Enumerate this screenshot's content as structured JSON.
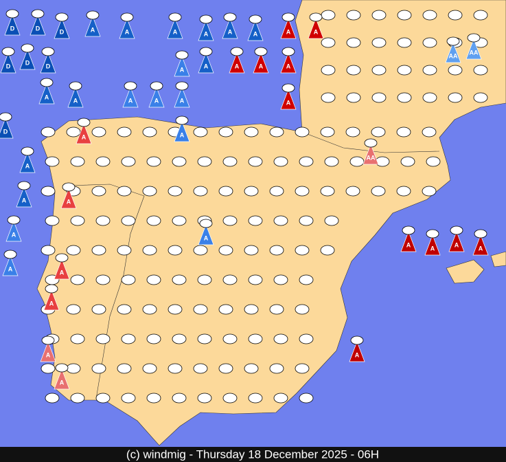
{
  "footer": "(c) windmig - Thursday 18 December 2025 - 06H",
  "markers": [
    "D",
    "D",
    "D",
    "D",
    "D",
    "D",
    "D",
    "A",
    "A",
    "A",
    "A",
    "A",
    "A",
    "A",
    "A",
    "A",
    "A",
    "A",
    "A",
    "A",
    "A",
    "A",
    "A",
    "A",
    "A",
    "A",
    "A",
    "A",
    "A",
    "A",
    "A",
    "A",
    "A",
    "A",
    "A",
    "A",
    "A",
    "A",
    "AA",
    "AA",
    "AA",
    "A",
    "A",
    "A",
    "A",
    "A"
  ]
}
